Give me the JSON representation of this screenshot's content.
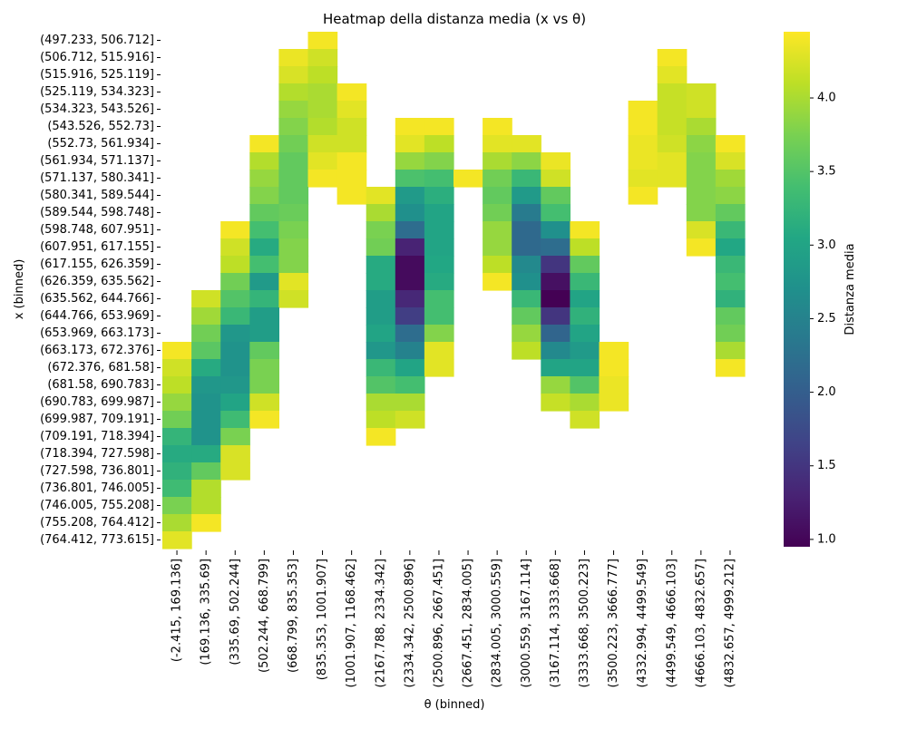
{
  "chart_data": {
    "type": "heatmap",
    "title": "Heatmap della distanza media (x vs θ)",
    "xlabel": "θ (binned)",
    "ylabel": "x (binned)",
    "colorbar_label": "Distanza media",
    "colormap": "viridis",
    "value_range": [
      0.95,
      4.45
    ],
    "colorbar_ticks": [
      "1.0",
      "1.5",
      "2.0",
      "2.5",
      "3.0",
      "3.5",
      "4.0"
    ],
    "grid": false,
    "x_categories": [
      "(-2.415, 169.136]",
      "(169.136, 335.69]",
      "(335.69, 502.244]",
      "(502.244, 668.799]",
      "(668.799, 835.353]",
      "(835.353, 1001.907]",
      "(1001.907, 1168.462]",
      "(2167.788, 2334.342]",
      "(2334.342, 2500.896]",
      "(2500.896, 2667.451]",
      "(2667.451, 2834.005]",
      "(2834.005, 3000.559]",
      "(3000.559, 3167.114]",
      "(3167.114, 3333.668]",
      "(3333.668, 3500.223]",
      "(3500.223, 3666.777]",
      "(4332.994, 4499.549]",
      "(4499.549, 4666.103]",
      "(4666.103, 4832.657]",
      "(4832.657, 4999.212]"
    ],
    "y_categories": [
      "(497.233, 506.712]",
      "(506.712, 515.916]",
      "(515.916, 525.119]",
      "(525.119, 534.323]",
      "(534.323, 543.526]",
      "(543.526, 552.73]",
      "(552.73, 561.934]",
      "(561.934, 571.137]",
      "(571.137, 580.341]",
      "(580.341, 589.544]",
      "(589.544, 598.748]",
      "(598.748, 607.951]",
      "(607.951, 617.155]",
      "(617.155, 626.359]",
      "(626.359, 635.562]",
      "(635.562, 644.766]",
      "(644.766, 653.969]",
      "(653.969, 663.173]",
      "(663.173, 672.376]",
      "(672.376, 681.58]",
      "(681.58, 690.783]",
      "(690.783, 699.987]",
      "(699.987, 709.191]",
      "(709.191, 718.394]",
      "(718.394, 727.598]",
      "(727.598, 736.801]",
      "(736.801, 746.005]",
      "(746.005, 755.208]",
      "(755.208, 764.412]",
      "(764.412, 773.615]"
    ],
    "values": [
      [
        null,
        null,
        null,
        null,
        null,
        4.4,
        null,
        null,
        null,
        null,
        null,
        null,
        null,
        null,
        null,
        null,
        null,
        null,
        null,
        null
      ],
      [
        null,
        null,
        null,
        null,
        4.35,
        4.2,
        null,
        null,
        null,
        null,
        null,
        null,
        null,
        null,
        null,
        null,
        null,
        4.4,
        null,
        null
      ],
      [
        null,
        null,
        null,
        null,
        4.25,
        4.1,
        null,
        null,
        null,
        null,
        null,
        null,
        null,
        null,
        null,
        null,
        null,
        4.3,
        null,
        null
      ],
      [
        null,
        null,
        null,
        null,
        4.05,
        4.0,
        4.4,
        null,
        null,
        null,
        null,
        null,
        null,
        null,
        null,
        null,
        null,
        4.15,
        4.2,
        null
      ],
      [
        null,
        null,
        null,
        null,
        3.9,
        4.0,
        4.3,
        null,
        null,
        null,
        null,
        null,
        null,
        null,
        null,
        null,
        4.4,
        4.15,
        4.2,
        null
      ],
      [
        null,
        null,
        null,
        null,
        3.8,
        4.05,
        4.2,
        null,
        4.4,
        4.4,
        null,
        4.4,
        null,
        null,
        null,
        null,
        4.4,
        4.15,
        4.0,
        null
      ],
      [
        null,
        null,
        null,
        4.4,
        3.7,
        4.2,
        4.2,
        null,
        4.3,
        4.1,
        null,
        4.3,
        4.3,
        null,
        null,
        null,
        4.35,
        4.2,
        3.85,
        4.4
      ],
      [
        null,
        null,
        null,
        4.05,
        3.6,
        4.3,
        4.4,
        null,
        3.9,
        3.8,
        null,
        4.0,
        3.85,
        4.35,
        null,
        null,
        4.35,
        4.3,
        3.8,
        4.25
      ],
      [
        null,
        null,
        null,
        3.9,
        3.6,
        4.4,
        4.4,
        null,
        3.45,
        3.4,
        4.4,
        3.7,
        3.3,
        4.2,
        null,
        null,
        4.3,
        4.3,
        3.8,
        3.95
      ],
      [
        null,
        null,
        null,
        3.8,
        3.6,
        null,
        4.4,
        4.3,
        2.85,
        3.15,
        null,
        3.6,
        2.85,
        3.6,
        null,
        null,
        4.4,
        null,
        3.8,
        3.85
      ],
      [
        null,
        null,
        null,
        3.6,
        3.65,
        null,
        null,
        4.0,
        2.7,
        3.0,
        null,
        3.7,
        2.4,
        3.4,
        null,
        null,
        null,
        null,
        3.8,
        3.6
      ],
      [
        null,
        null,
        4.4,
        3.4,
        3.75,
        null,
        null,
        3.75,
        2.2,
        3.0,
        null,
        3.9,
        2.15,
        2.7,
        4.4,
        null,
        null,
        null,
        4.25,
        3.3
      ],
      [
        null,
        null,
        4.2,
        3.1,
        3.8,
        null,
        null,
        3.7,
        1.3,
        3.0,
        null,
        3.9,
        2.15,
        2.2,
        4.1,
        null,
        null,
        null,
        4.4,
        3.05
      ],
      [
        null,
        null,
        4.1,
        3.4,
        3.8,
        null,
        null,
        3.1,
        1.05,
        3.05,
        null,
        4.1,
        2.6,
        1.5,
        3.6,
        null,
        null,
        null,
        null,
        3.3
      ],
      [
        null,
        null,
        3.7,
        2.85,
        4.3,
        null,
        null,
        3.1,
        1.05,
        3.1,
        null,
        4.4,
        2.7,
        1.1,
        3.3,
        null,
        null,
        null,
        null,
        3.4
      ],
      [
        null,
        4.2,
        3.5,
        3.25,
        4.2,
        null,
        null,
        2.9,
        1.35,
        3.4,
        null,
        null,
        3.3,
        0.95,
        3.0,
        null,
        null,
        null,
        null,
        3.2
      ],
      [
        null,
        3.95,
        3.3,
        2.9,
        null,
        null,
        null,
        2.9,
        1.6,
        3.4,
        null,
        null,
        3.6,
        1.5,
        3.2,
        null,
        null,
        null,
        null,
        3.6
      ],
      [
        null,
        3.7,
        2.8,
        2.9,
        null,
        null,
        null,
        3.0,
        2.2,
        3.8,
        null,
        null,
        3.9,
        2.1,
        3.0,
        null,
        null,
        null,
        null,
        3.7
      ],
      [
        4.4,
        3.55,
        2.75,
        3.6,
        null,
        null,
        null,
        2.8,
        2.5,
        4.3,
        null,
        null,
        4.1,
        2.6,
        2.85,
        4.4,
        null,
        null,
        null,
        4.0
      ],
      [
        4.2,
        3.1,
        2.75,
        3.75,
        null,
        null,
        null,
        3.3,
        3.0,
        4.3,
        null,
        null,
        null,
        3.0,
        3.0,
        4.4,
        null,
        null,
        null,
        4.4
      ],
      [
        4.1,
        2.8,
        2.8,
        3.75,
        null,
        null,
        null,
        3.5,
        3.4,
        null,
        null,
        null,
        null,
        3.9,
        3.5,
        4.35,
        null,
        null,
        null,
        null
      ],
      [
        3.9,
        2.75,
        3.0,
        4.2,
        null,
        null,
        null,
        4.0,
        4.0,
        null,
        null,
        null,
        null,
        4.15,
        4.0,
        4.35,
        null,
        null,
        null,
        null
      ],
      [
        3.7,
        2.75,
        3.35,
        4.4,
        null,
        null,
        null,
        4.1,
        4.2,
        null,
        null,
        null,
        null,
        null,
        4.2,
        null,
        null,
        null,
        null,
        null
      ],
      [
        3.25,
        2.75,
        3.75,
        null,
        null,
        null,
        null,
        4.4,
        null,
        null,
        null,
        null,
        null,
        null,
        null,
        null,
        null,
        null,
        null,
        null
      ],
      [
        3.1,
        3.1,
        4.25,
        null,
        null,
        null,
        null,
        null,
        null,
        null,
        null,
        null,
        null,
        null,
        null,
        null,
        null,
        null,
        null,
        null
      ],
      [
        3.2,
        3.6,
        4.25,
        null,
        null,
        null,
        null,
        null,
        null,
        null,
        null,
        null,
        null,
        null,
        null,
        null,
        null,
        null,
        null,
        null
      ],
      [
        3.35,
        4.05,
        null,
        null,
        null,
        null,
        null,
        null,
        null,
        null,
        null,
        null,
        null,
        null,
        null,
        null,
        null,
        null,
        null,
        null
      ],
      [
        3.75,
        4.05,
        null,
        null,
        null,
        null,
        null,
        null,
        null,
        null,
        null,
        null,
        null,
        null,
        null,
        null,
        null,
        null,
        null,
        null
      ],
      [
        4.0,
        4.4,
        null,
        null,
        null,
        null,
        null,
        null,
        null,
        null,
        null,
        null,
        null,
        null,
        null,
        null,
        null,
        null,
        null,
        null
      ],
      [
        4.3,
        null,
        null,
        null,
        null,
        null,
        null,
        null,
        null,
        null,
        null,
        null,
        null,
        null,
        null,
        null,
        null,
        null,
        null,
        null
      ]
    ]
  }
}
